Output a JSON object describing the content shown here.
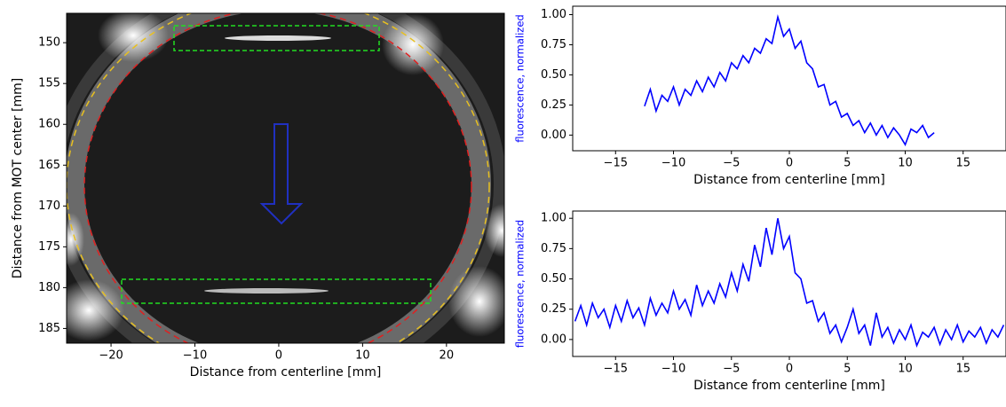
{
  "chart_data": [
    {
      "type": "image",
      "xlabel": "Distance from centerline [mm]",
      "ylabel": "Distance from MOT center [mm]",
      "xlim": [
        -25.3,
        26.9
      ],
      "ylim": [
        146.4,
        186.8
      ],
      "y_inverted": true,
      "xticks": [
        {
          "value": -20,
          "label": "−20"
        },
        {
          "value": -10,
          "label": "−10"
        },
        0,
        10,
        20
      ],
      "yticks": [
        150,
        155,
        160,
        165,
        170,
        175,
        180,
        185
      ]
    },
    {
      "type": "line",
      "xlabel": "Distance from centerline [mm]",
      "ylabel": "fluorescence, normalized",
      "xlim": [
        -18.7,
        18.7
      ],
      "ylim": [
        -0.13,
        1.07
      ],
      "xticks": [
        {
          "value": -15,
          "label": "−15"
        },
        {
          "value": -10,
          "label": "−10"
        },
        {
          "value": -5,
          "label": "−5"
        },
        0,
        5,
        10,
        15
      ],
      "yticks": [
        {
          "value": 0,
          "label": "0.00"
        },
        {
          "value": 0.25,
          "label": "0.25"
        },
        {
          "value": 0.5,
          "label": "0.50"
        },
        {
          "value": 0.75,
          "label": "0.75"
        },
        {
          "value": 1,
          "label": "1.00"
        }
      ],
      "series": [
        {
          "color": "#0000ff",
          "x": [
            -12.5,
            -12,
            -11.5,
            -11,
            -10.5,
            -10,
            -9.5,
            -9,
            -8.5,
            -8,
            -7.5,
            -7,
            -6.5,
            -6,
            -5.5,
            -5,
            -4.5,
            -4,
            -3.5,
            -3,
            -2.5,
            -2,
            -1.5,
            -1,
            -0.5,
            0,
            0.5,
            1,
            1.5,
            2,
            2.5,
            3,
            3.5,
            4,
            4.5,
            5,
            5.5,
            6,
            6.5,
            7,
            7.5,
            8,
            8.5,
            9,
            9.5,
            10,
            10.5,
            11,
            11.5,
            12,
            12.5
          ],
          "values": [
            0.24,
            0.38,
            0.2,
            0.33,
            0.28,
            0.4,
            0.25,
            0.38,
            0.33,
            0.45,
            0.36,
            0.48,
            0.4,
            0.52,
            0.45,
            0.6,
            0.55,
            0.66,
            0.6,
            0.72,
            0.68,
            0.8,
            0.76,
            0.98,
            0.82,
            0.88,
            0.72,
            0.78,
            0.6,
            0.55,
            0.4,
            0.42,
            0.25,
            0.28,
            0.15,
            0.18,
            0.08,
            0.12,
            0.02,
            0.1,
            0,
            0.08,
            -0.02,
            0.06,
            0,
            -0.08,
            0.05,
            0.02,
            0.08,
            -0.02,
            0.02
          ]
        }
      ]
    },
    {
      "type": "line",
      "xlabel": "Distance from centerline [mm]",
      "ylabel": "fluorescence, normalized",
      "xlim": [
        -18.7,
        18.7
      ],
      "ylim": [
        -0.14,
        1.06
      ],
      "xticks": [
        {
          "value": -15,
          "label": "−15"
        },
        {
          "value": -10,
          "label": "−10"
        },
        {
          "value": -5,
          "label": "−5"
        },
        0,
        5,
        10,
        15
      ],
      "yticks": [
        {
          "value": 0,
          "label": "0.00"
        },
        {
          "value": 0.25,
          "label": "0.25"
        },
        {
          "value": 0.5,
          "label": "0.50"
        },
        {
          "value": 0.75,
          "label": "0.75"
        },
        {
          "value": 1,
          "label": "1.00"
        }
      ],
      "series": [
        {
          "color": "#0000ff",
          "x": [
            -18.5,
            -18,
            -17.5,
            -17,
            -16.5,
            -16,
            -15.5,
            -15,
            -14.5,
            -14,
            -13.5,
            -13,
            -12.5,
            -12,
            -11.5,
            -11,
            -10.5,
            -10,
            -9.5,
            -9,
            -8.5,
            -8,
            -7.5,
            -7,
            -6.5,
            -6,
            -5.5,
            -5,
            -4.5,
            -4,
            -3.5,
            -3,
            -2.5,
            -2,
            -1.5,
            -1,
            -0.5,
            0,
            0.5,
            1,
            1.5,
            2,
            2.5,
            3,
            3.5,
            4,
            4.5,
            5,
            5.5,
            6,
            6.5,
            7,
            7.5,
            8,
            8.5,
            9,
            9.5,
            10,
            10.5,
            11,
            11.5,
            12,
            12.5,
            13,
            13.5,
            14,
            14.5,
            15,
            15.5,
            16,
            16.5,
            17,
            17.5,
            18,
            18.5
          ],
          "values": [
            0.15,
            0.28,
            0.12,
            0.3,
            0.18,
            0.25,
            0.1,
            0.28,
            0.15,
            0.32,
            0.18,
            0.26,
            0.12,
            0.34,
            0.2,
            0.3,
            0.22,
            0.4,
            0.25,
            0.33,
            0.2,
            0.45,
            0.28,
            0.4,
            0.3,
            0.46,
            0.35,
            0.55,
            0.4,
            0.62,
            0.48,
            0.78,
            0.6,
            0.92,
            0.7,
            1,
            0.75,
            0.85,
            0.55,
            0.5,
            0.3,
            0.32,
            0.15,
            0.22,
            0.05,
            0.12,
            -0.02,
            0.1,
            0.25,
            0.05,
            0.12,
            -0.05,
            0.22,
            0.02,
            0.1,
            -0.03,
            0.08,
            0,
            0.12,
            -0.05,
            0.06,
            0.02,
            0.1,
            -0.04,
            0.08,
            0,
            0.12,
            -0.02,
            0.07,
            0.02,
            0.1,
            -0.03,
            0.08,
            0.02,
            0.12
          ]
        }
      ]
    }
  ]
}
